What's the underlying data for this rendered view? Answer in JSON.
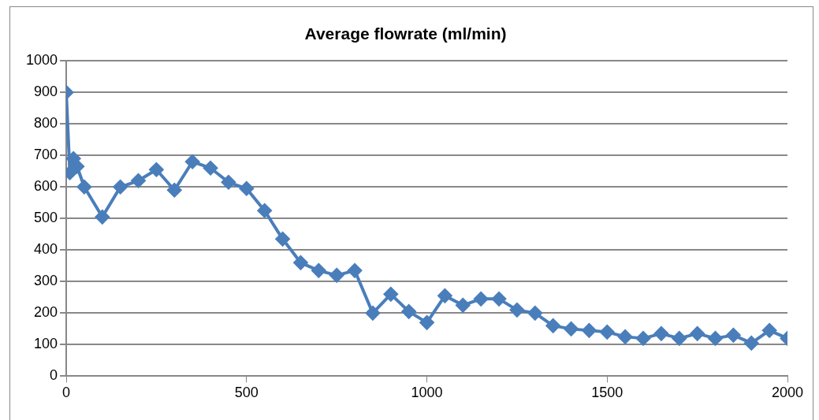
{
  "chart_data": {
    "type": "line",
    "title": "Average flowrate (ml/min)",
    "x": [
      0,
      10,
      20,
      30,
      50,
      100,
      150,
      200,
      250,
      300,
      350,
      400,
      450,
      500,
      550,
      600,
      650,
      700,
      750,
      800,
      850,
      900,
      950,
      1000,
      1050,
      1100,
      1150,
      1200,
      1250,
      1300,
      1350,
      1400,
      1450,
      1500,
      1550,
      1600,
      1650,
      1700,
      1750,
      1800,
      1850,
      1900,
      1950,
      2000
    ],
    "series": [
      {
        "color": "#4a7ebb",
        "values": [
          900,
          645,
          690,
          665,
          600,
          505,
          600,
          620,
          655,
          590,
          680,
          660,
          615,
          595,
          525,
          435,
          360,
          335,
          320,
          335,
          200,
          260,
          205,
          170,
          255,
          225,
          245,
          245,
          210,
          200,
          160,
          150,
          145,
          140,
          125,
          120,
          135,
          120,
          135,
          120,
          130,
          105,
          145,
          120
        ]
      }
    ],
    "xlim": [
      0,
      2000
    ],
    "xticks": [
      0,
      500,
      1000,
      1500,
      2000
    ],
    "ylim": [
      0,
      1000
    ],
    "yticks": [
      0,
      100,
      200,
      300,
      400,
      500,
      600,
      700,
      800,
      900,
      1000
    ],
    "grid": "y",
    "legend": false,
    "marker": "diamond",
    "line_style": "solid"
  }
}
